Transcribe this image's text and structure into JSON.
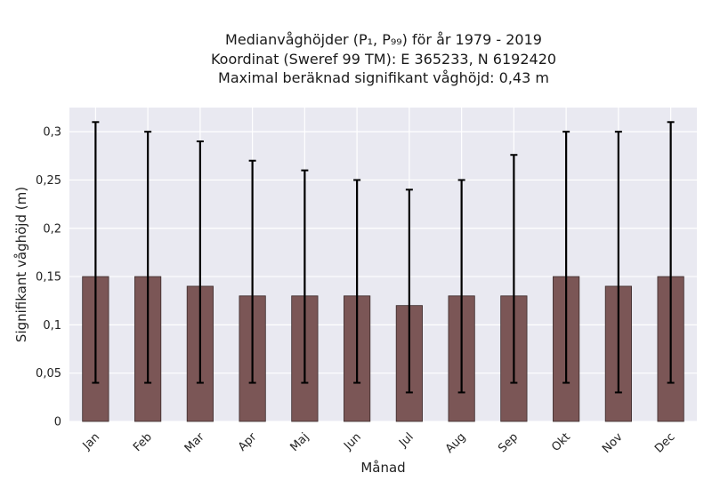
{
  "chart_data": {
    "type": "bar",
    "title_lines": [
      "Medianvåghöjder (P₁, P₉₉) för år 1979 - 2019",
      "Koordinat (Sweref 99 TM): E 365233, N 6192420",
      "Maximal beräknad signifikant våghöjd: 0,43 m"
    ],
    "xlabel": "Månad",
    "ylabel": "Signifikant våghöjd (m)",
    "categories": [
      "Jan",
      "Feb",
      "Mar",
      "Apr",
      "Maj",
      "Jun",
      "Jul",
      "Aug",
      "Sep",
      "Okt",
      "Nov",
      "Dec"
    ],
    "values": [
      0.15,
      0.15,
      0.14,
      0.13,
      0.13,
      0.13,
      0.12,
      0.13,
      0.13,
      0.15,
      0.14,
      0.15
    ],
    "p1": [
      0.04,
      0.04,
      0.04,
      0.04,
      0.04,
      0.04,
      0.03,
      0.03,
      0.04,
      0.04,
      0.03,
      0.04
    ],
    "p99": [
      0.31,
      0.3,
      0.29,
      0.27,
      0.26,
      0.25,
      0.24,
      0.25,
      0.276,
      0.3,
      0.3,
      0.31
    ],
    "ylim": [
      0,
      0.325
    ],
    "yticks": [
      0,
      0.05,
      0.1,
      0.15,
      0.2,
      0.25,
      0.3
    ],
    "ytick_labels": [
      "0",
      "0,05",
      "0,1",
      "0,15",
      "0,2",
      "0,25",
      "0,3"
    ],
    "bar_color": "#7b5656",
    "plot_background": "#e9e9f1",
    "grid": true
  }
}
